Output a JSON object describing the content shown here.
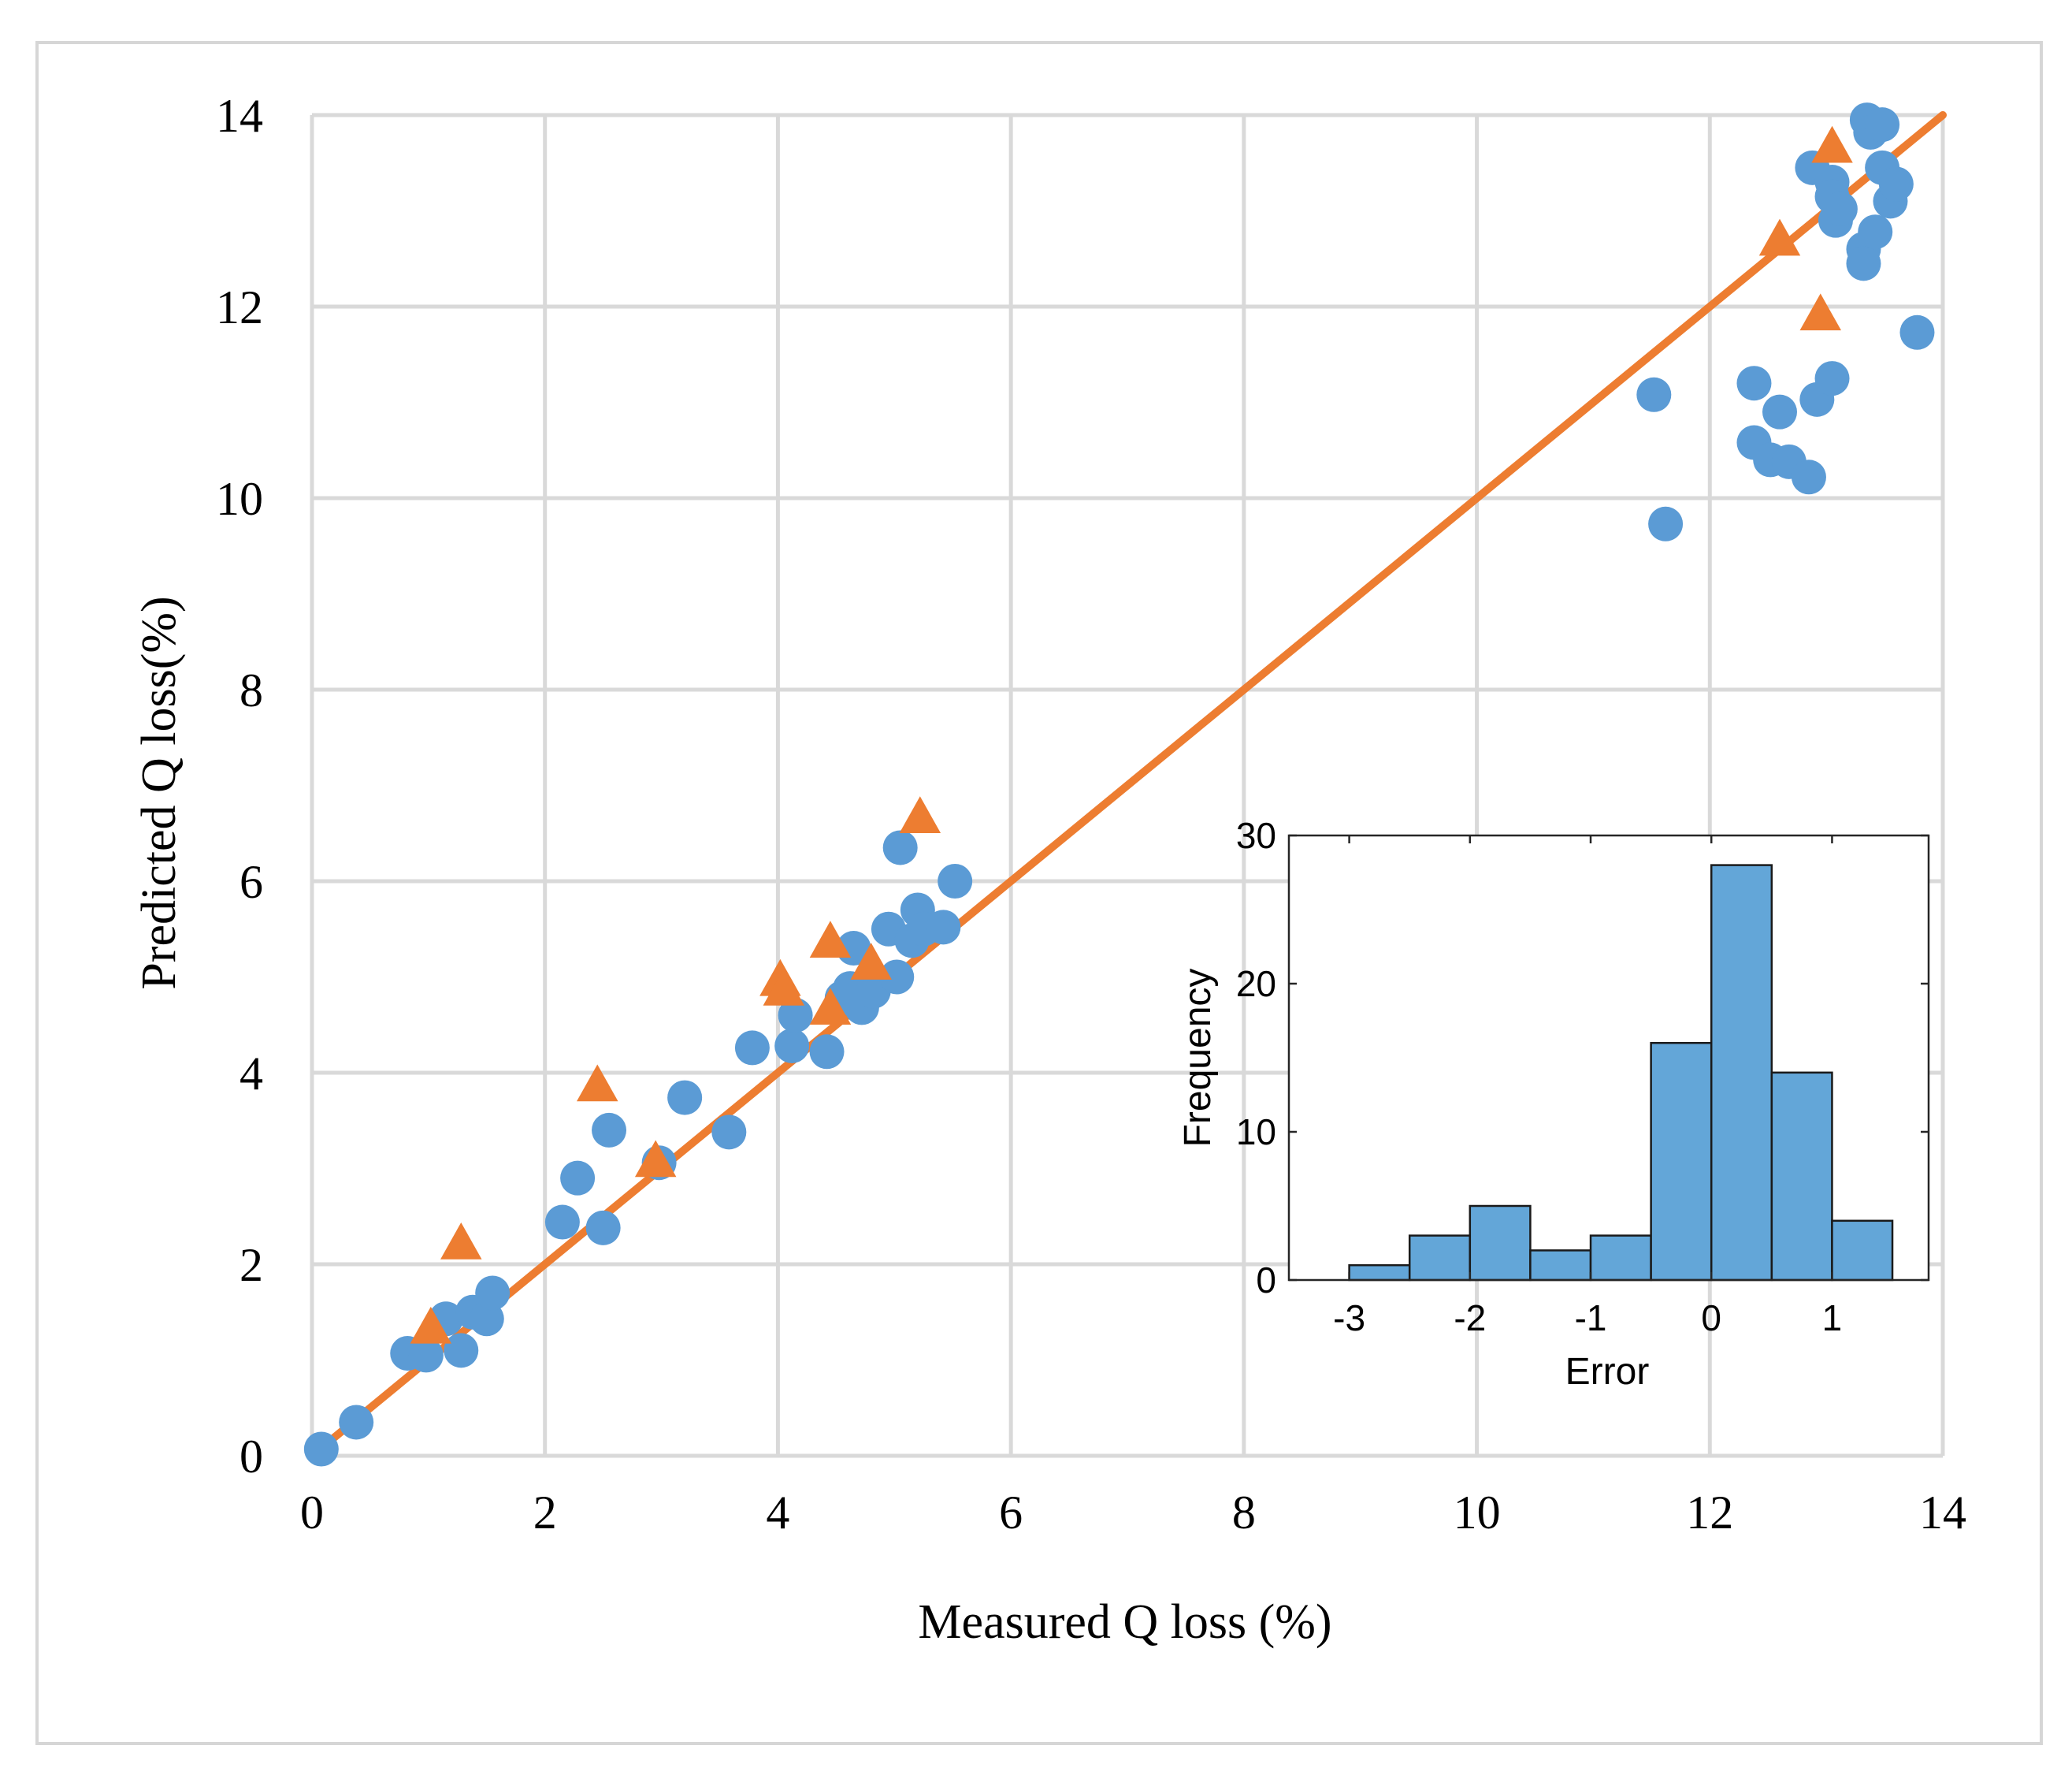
{
  "chart_data": [
    {
      "type": "scatter",
      "xlabel": "Measured Q loss (%)",
      "ylabel": "Predicted Q loss(%)",
      "xlim": [
        0,
        14
      ],
      "ylim": [
        0,
        14
      ],
      "xticks": [
        "0",
        "2",
        "4",
        "6",
        "8",
        "10",
        "12",
        "14"
      ],
      "yticks": [
        "0",
        "2",
        "4",
        "6",
        "8",
        "10",
        "12",
        "14"
      ],
      "grid": true,
      "colors": {
        "series1": "#5b9bd5",
        "series2": "#ed7d31",
        "line": "#ed7d31",
        "grid": "#d9d9d9"
      },
      "reference_line": {
        "x": [
          0,
          14
        ],
        "y": [
          0,
          14
        ]
      },
      "series": [
        {
          "name": "circles",
          "marker": "circle",
          "points": [
            [
              0.08,
              0.07
            ],
            [
              0.38,
              0.35
            ],
            [
              0.82,
              1.07
            ],
            [
              0.98,
              1.05
            ],
            [
              1.15,
              1.43
            ],
            [
              1.28,
              1.1
            ],
            [
              1.38,
              1.5
            ],
            [
              1.5,
              1.43
            ],
            [
              1.55,
              1.7
            ],
            [
              2.15,
              2.44
            ],
            [
              2.28,
              2.9
            ],
            [
              2.5,
              2.38
            ],
            [
              2.55,
              3.4
            ],
            [
              2.98,
              3.06
            ],
            [
              3.2,
              3.74
            ],
            [
              3.58,
              3.38
            ],
            [
              3.78,
              4.26
            ],
            [
              4.12,
              4.28
            ],
            [
              4.15,
              4.6
            ],
            [
              4.42,
              4.22
            ],
            [
              4.55,
              4.78
            ],
            [
              4.62,
              4.88
            ],
            [
              4.65,
              5.3
            ],
            [
              4.72,
              4.68
            ],
            [
              4.82,
              4.85
            ],
            [
              4.95,
              5.5
            ],
            [
              5.02,
              5.0
            ],
            [
              5.05,
              6.35
            ],
            [
              5.15,
              5.38
            ],
            [
              5.2,
              5.7
            ],
            [
              5.25,
              5.5
            ],
            [
              5.42,
              5.52
            ],
            [
              5.52,
              6.0
            ],
            [
              11.52,
              11.08
            ],
            [
              11.62,
              9.73
            ],
            [
              12.38,
              11.2
            ],
            [
              12.38,
              10.58
            ],
            [
              12.52,
              10.4
            ],
            [
              12.6,
              10.9
            ],
            [
              12.68,
              10.38
            ],
            [
              12.85,
              10.22
            ],
            [
              12.88,
              13.45
            ],
            [
              12.92,
              11.03
            ],
            [
              13.05,
              11.25
            ],
            [
              13.05,
              13.3
            ],
            [
              13.05,
              13.15
            ],
            [
              13.08,
              12.9
            ],
            [
              13.12,
              13.02
            ],
            [
              13.32,
              12.6
            ],
            [
              13.32,
              12.45
            ],
            [
              13.35,
              13.95
            ],
            [
              13.38,
              13.82
            ],
            [
              13.42,
              12.78
            ],
            [
              13.48,
              13.9
            ],
            [
              13.48,
              13.45
            ],
            [
              13.55,
              13.1
            ],
            [
              13.6,
              13.28
            ],
            [
              13.78,
              11.73
            ]
          ]
        },
        {
          "name": "triangles",
          "marker": "triangle",
          "points": [
            [
              1.02,
              1.32
            ],
            [
              1.28,
              2.2
            ],
            [
              2.45,
              3.85
            ],
            [
              2.95,
              3.06
            ],
            [
              4.02,
              4.95
            ],
            [
              4.05,
              4.85
            ],
            [
              4.45,
              5.35
            ],
            [
              4.45,
              4.65
            ],
            [
              4.8,
              5.12
            ],
            [
              5.22,
              6.65
            ],
            [
              12.6,
              12.68
            ],
            [
              12.95,
              11.9
            ],
            [
              13.05,
              13.65
            ]
          ]
        }
      ]
    },
    {
      "type": "bar",
      "title": "",
      "xlabel": "Error",
      "ylabel": "Frequency",
      "xlim": [
        -3.5,
        1.8
      ],
      "ylim": [
        0,
        30
      ],
      "xticks": [
        "-3",
        "-2",
        "-1",
        "0",
        "1"
      ],
      "yticks": [
        "0",
        "10",
        "20",
        "30"
      ],
      "bin_width": 0.5,
      "bins": [
        {
          "start": -3.0,
          "count": 1
        },
        {
          "start": -2.5,
          "count": 3
        },
        {
          "start": -2.0,
          "count": 5
        },
        {
          "start": -1.5,
          "count": 2
        },
        {
          "start": -1.0,
          "count": 3
        },
        {
          "start": -0.5,
          "count": 16
        },
        {
          "start": 0.0,
          "count": 28
        },
        {
          "start": 0.5,
          "count": 14
        },
        {
          "start": 1.0,
          "count": 4
        }
      ],
      "colors": {
        "bar": "#63a6d8",
        "edge": "#1a1a1a"
      }
    }
  ]
}
